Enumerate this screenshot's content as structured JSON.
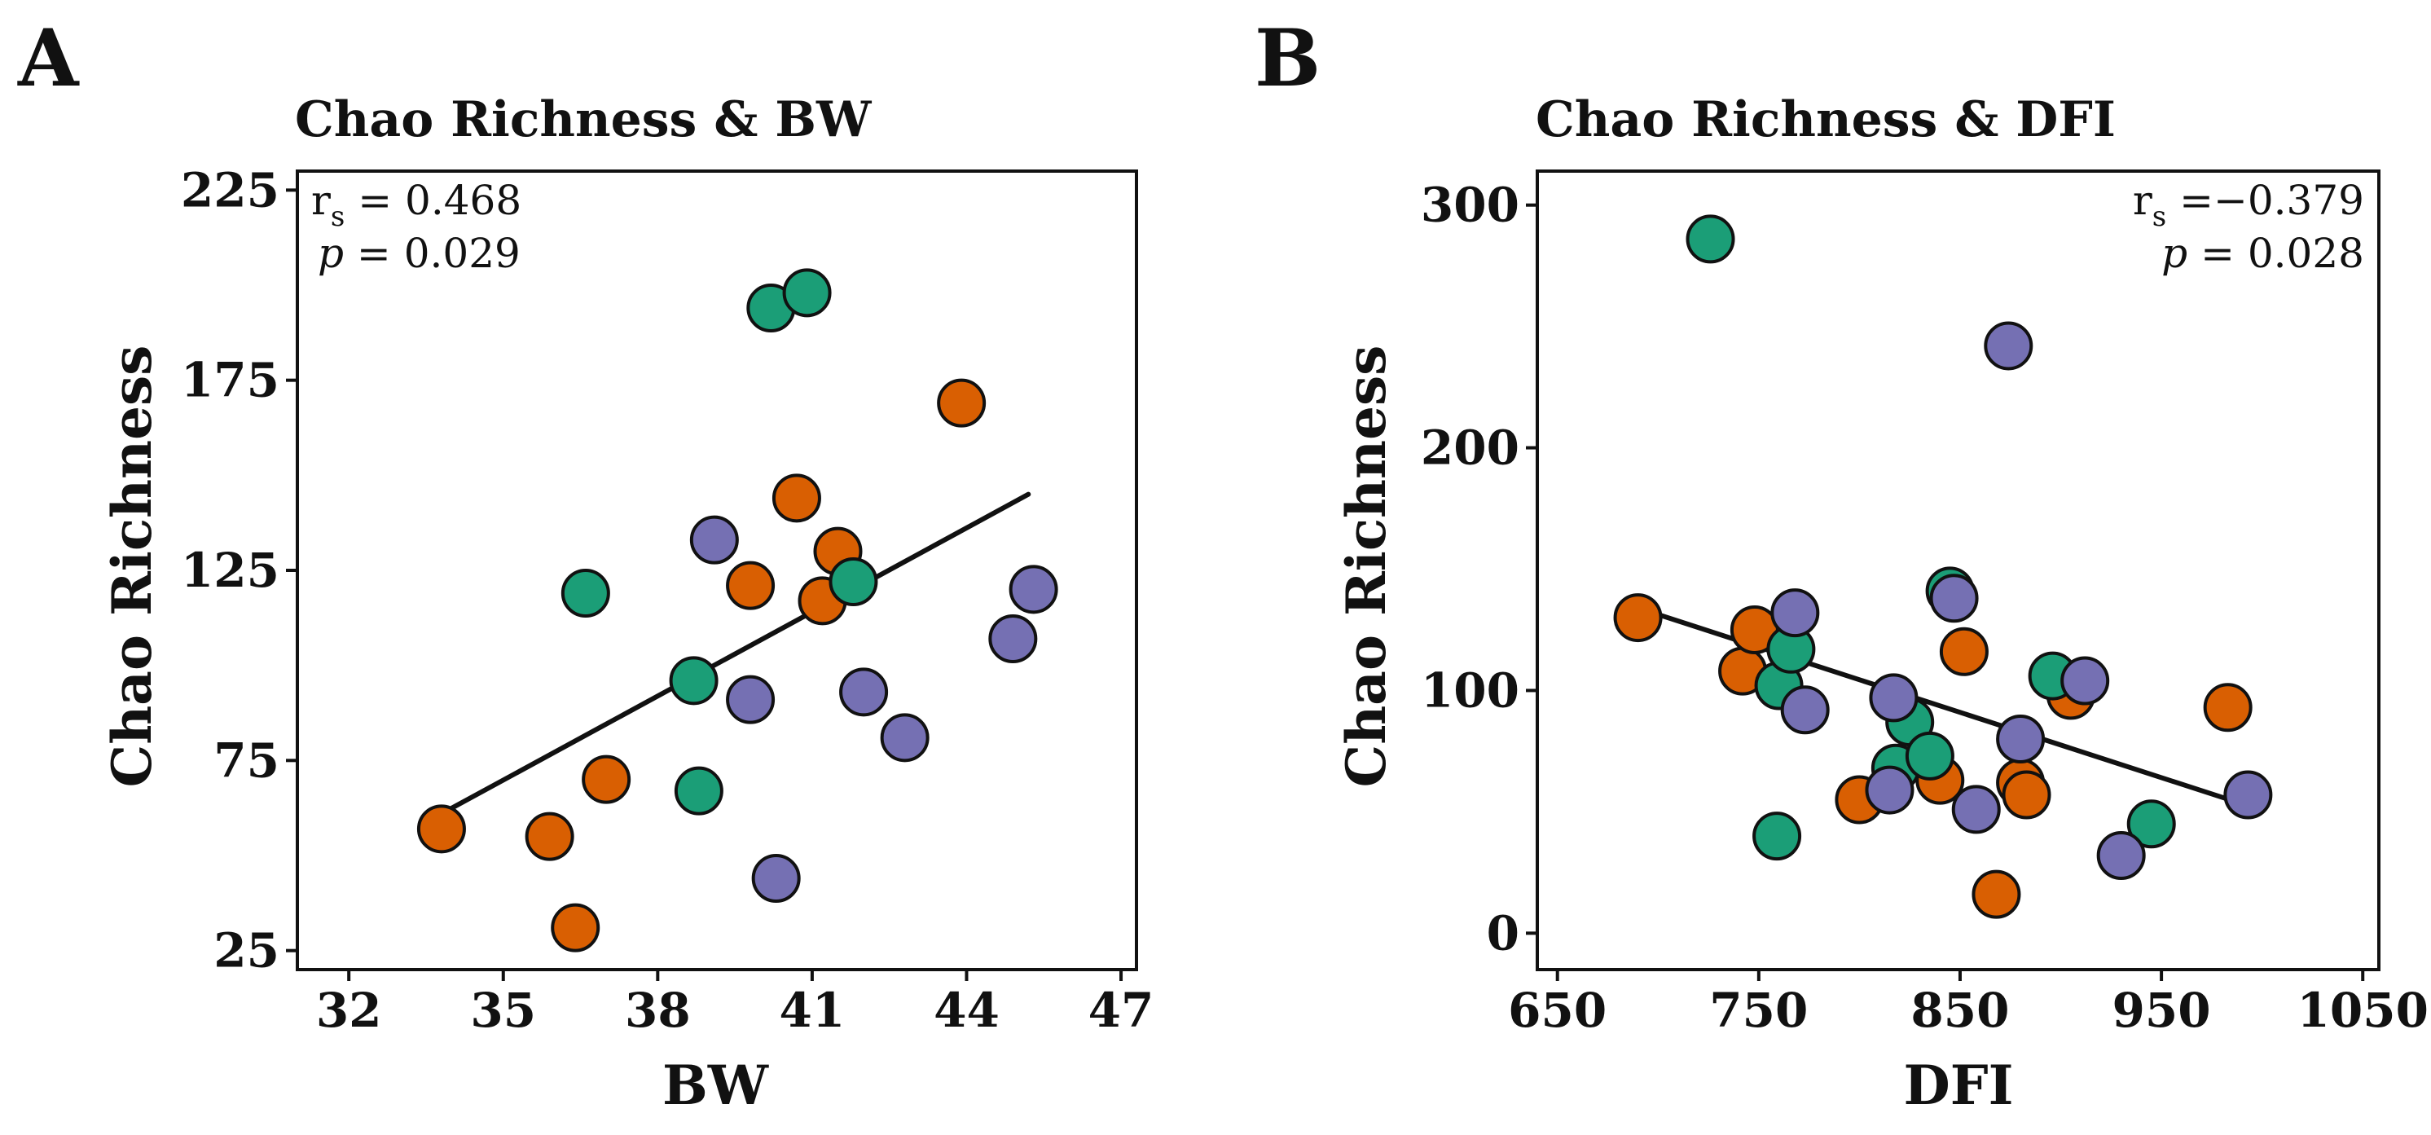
{
  "colors": {
    "orange": "#D95F02",
    "green": "#1B9E77",
    "purple": "#7570B3",
    "ink": "#111111"
  },
  "chart_data": [
    {
      "panel_label": "A",
      "title": "Chao Richness & BW",
      "type": "scatter",
      "xlabel": "BW",
      "ylabel": "Chao Richness",
      "xlim": [
        31.0,
        47.3
      ],
      "ylim": [
        20,
        230
      ],
      "xticks": [
        "32",
        "35",
        "38",
        "41",
        "44",
        "47"
      ],
      "xtick_values": [
        32,
        35,
        38,
        41,
        44,
        47
      ],
      "yticks": [
        "25",
        "75",
        "125",
        "175",
        "225"
      ],
      "ytick_values": [
        25,
        75,
        125,
        175,
        225
      ],
      "stat_r_label": "r",
      "stat_r_sub": "s",
      "stat_r_value": " = 0.468",
      "stat_p_label": "p",
      "stat_p_value": " = 0.029",
      "stat_placement": "top-left",
      "trend_line": {
        "x": [
          33.8,
          45.2
        ],
        "y": [
          61,
          145
        ]
      },
      "points": [
        {
          "x": 33.8,
          "y": 57,
          "group": "orange"
        },
        {
          "x": 35.9,
          "y": 55,
          "group": "orange"
        },
        {
          "x": 36.4,
          "y": 31,
          "group": "orange"
        },
        {
          "x": 37.0,
          "y": 70,
          "group": "orange"
        },
        {
          "x": 39.8,
          "y": 121,
          "group": "orange"
        },
        {
          "x": 40.7,
          "y": 144,
          "group": "orange"
        },
        {
          "x": 41.2,
          "y": 117,
          "group": "orange"
        },
        {
          "x": 41.5,
          "y": 130,
          "group": "orange"
        },
        {
          "x": 43.9,
          "y": 169,
          "group": "orange"
        },
        {
          "x": 36.6,
          "y": 119,
          "group": "green"
        },
        {
          "x": 38.7,
          "y": 96,
          "group": "green"
        },
        {
          "x": 38.8,
          "y": 67,
          "group": "green"
        },
        {
          "x": 40.2,
          "y": 194,
          "group": "green"
        },
        {
          "x": 40.9,
          "y": 198,
          "group": "green"
        },
        {
          "x": 41.8,
          "y": 122,
          "group": "green"
        },
        {
          "x": 39.1,
          "y": 133,
          "group": "purple"
        },
        {
          "x": 39.8,
          "y": 91,
          "group": "purple"
        },
        {
          "x": 40.3,
          "y": 44,
          "group": "purple"
        },
        {
          "x": 42.0,
          "y": 93,
          "group": "purple"
        },
        {
          "x": 42.8,
          "y": 81,
          "group": "purple"
        },
        {
          "x": 44.9,
          "y": 107,
          "group": "purple"
        },
        {
          "x": 45.3,
          "y": 120,
          "group": "purple"
        }
      ]
    },
    {
      "panel_label": "B",
      "title": "Chao Richness & DFI",
      "type": "scatter",
      "xlabel": "DFI",
      "ylabel": "Chao Richness",
      "xlim": [
        640,
        1058
      ],
      "ylim": [
        -15,
        314
      ],
      "xticks": [
        "650",
        "750",
        "850",
        "950",
        "1050"
      ],
      "xtick_values": [
        650,
        750,
        850,
        950,
        1050
      ],
      "yticks": [
        "0",
        "100",
        "200",
        "300"
      ],
      "ytick_values": [
        0,
        100,
        200,
        300
      ],
      "stat_r_label": "r",
      "stat_r_sub": "s",
      "stat_r_value": " =−0.379",
      "stat_p_label": "p",
      "stat_p_value": " = 0.028",
      "stat_placement": "top-right",
      "trend_line": {
        "x": [
          690,
          995
        ],
        "y": [
          134,
          52
        ]
      },
      "points": [
        {
          "x": 690,
          "y": 130,
          "group": "orange"
        },
        {
          "x": 742,
          "y": 108,
          "group": "orange"
        },
        {
          "x": 748,
          "y": 125,
          "group": "orange"
        },
        {
          "x": 800,
          "y": 55,
          "group": "orange"
        },
        {
          "x": 840,
          "y": 63,
          "group": "orange"
        },
        {
          "x": 852,
          "y": 116,
          "group": "orange"
        },
        {
          "x": 868,
          "y": 16,
          "group": "orange"
        },
        {
          "x": 880,
          "y": 62,
          "group": "orange"
        },
        {
          "x": 883,
          "y": 57,
          "group": "orange"
        },
        {
          "x": 905,
          "y": 98,
          "group": "orange"
        },
        {
          "x": 983,
          "y": 93,
          "group": "orange"
        },
        {
          "x": 726,
          "y": 286,
          "group": "green"
        },
        {
          "x": 759,
          "y": 40,
          "group": "green"
        },
        {
          "x": 760,
          "y": 102,
          "group": "green"
        },
        {
          "x": 766,
          "y": 117,
          "group": "green"
        },
        {
          "x": 818,
          "y": 68,
          "group": "green"
        },
        {
          "x": 825,
          "y": 87,
          "group": "green"
        },
        {
          "x": 835,
          "y": 73,
          "group": "green"
        },
        {
          "x": 845,
          "y": 141,
          "group": "green"
        },
        {
          "x": 896,
          "y": 106,
          "group": "green"
        },
        {
          "x": 945,
          "y": 45,
          "group": "green"
        },
        {
          "x": 768,
          "y": 132,
          "group": "purple"
        },
        {
          "x": 773,
          "y": 92,
          "group": "purple"
        },
        {
          "x": 815,
          "y": 59,
          "group": "purple"
        },
        {
          "x": 817,
          "y": 97,
          "group": "purple"
        },
        {
          "x": 847,
          "y": 138,
          "group": "purple"
        },
        {
          "x": 858,
          "y": 51,
          "group": "purple"
        },
        {
          "x": 874,
          "y": 242,
          "group": "purple"
        },
        {
          "x": 880,
          "y": 80,
          "group": "purple"
        },
        {
          "x": 912,
          "y": 104,
          "group": "purple"
        },
        {
          "x": 930,
          "y": 32,
          "group": "purple"
        },
        {
          "x": 993,
          "y": 57,
          "group": "purple"
        }
      ]
    }
  ]
}
